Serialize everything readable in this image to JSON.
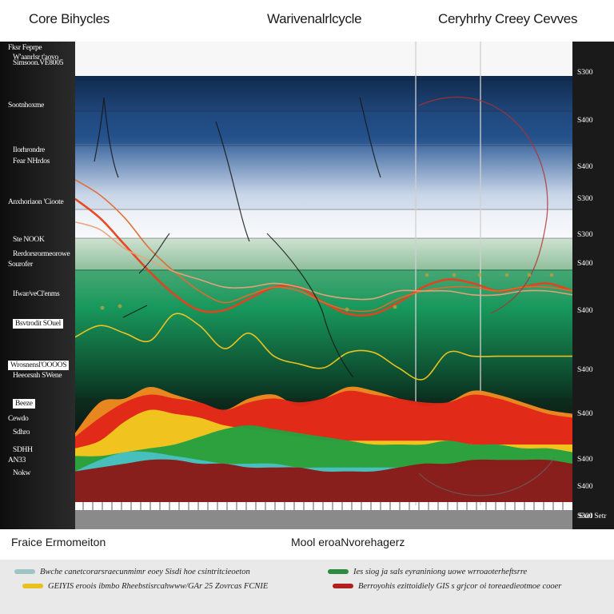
{
  "header": {
    "left_title": "Core Bihycles",
    "center_title": "Warivenalrlcycle",
    "right_title": "Ceryhrhy Creey Cevves"
  },
  "left_labels": [
    "Fksr  Feprpe",
    "W'aanrlsr t'aovo",
    "Simsoon.VE8005",
    "Sootnhoxme",
    "Ilorhrondre",
    "Fear    NHrdos",
    "Anxhoriaon 'Cioote",
    "Ste       NOOK",
    "Rerdorsrormeorowe",
    "Sourofer",
    "Ifwar/veCl'enms",
    "Bsvtrodit SOuel",
    "Wrosnensl'OOOOS",
    "Heeorsnh SWene",
    "Beeze",
    "Cewdo",
    "Sdhro",
    "SDHH",
    "AN33",
    "Nokw"
  ],
  "right_labels": [
    "S300",
    "S400",
    "S400",
    "S300",
    "S300",
    "S400",
    "S400",
    "S400",
    "S400",
    "S400",
    "S400",
    "S300",
    "Sxel Setr"
  ],
  "footer": {
    "left_label": "Fraice  Ermomeiton",
    "center_label": "Mool eroaNvorehagerz"
  },
  "legend": [
    {
      "text": "Bwche  canetcorarsraecunmimr eoey Sisdi hoe  csintritcieoeton",
      "color": "#9fc4c4"
    },
    {
      "text": "Ies  siog ja sals  eyraniniong uowe wrroaoterheftsrre",
      "color": "#2d8a3e"
    },
    {
      "text": "GEIYIS eroois  ibmbo Rheebstisrcahwww/GAr 25  Zovrcas FCNIE",
      "color": "#e8c020"
    },
    {
      "text": "Berroyohis  ezittoidiely   GIS s grjcor oi  toreaedieotmoe  cooer",
      "color": "#b02020"
    }
  ],
  "colors": {
    "band_navy": "#17335a",
    "band_blue": "#2d5b9a",
    "band_green": "#13985a",
    "band_dark_green": "#0c4a2a",
    "curve_red": "#e02818",
    "curve_orange": "#f08a20",
    "curve_yellow": "#f2c820",
    "curve_teal": "#48c0c0",
    "curve_green": "#27a040",
    "curve_maroon": "#8a1a18",
    "baseline_gray": "#9e9e9e"
  },
  "chart_data": {
    "type": "area",
    "title": "",
    "xlabel": "",
    "ylabel": "",
    "y_ticks": [
      "S300",
      "S400",
      "S400",
      "S300",
      "S300",
      "S400",
      "S400",
      "S400",
      "S400",
      "S400",
      "S400",
      "S300"
    ],
    "ylim": [
      0,
      12
    ],
    "x": [
      0,
      1,
      2,
      3,
      4,
      5,
      6,
      7,
      8,
      9,
      10,
      11,
      12,
      13,
      14,
      15,
      16,
      17,
      18,
      19,
      20
    ],
    "series": [
      {
        "name": "",
        "kind": "line",
        "color": "#e8401c",
        "values": [
          7.9,
          7.4,
          6.7,
          6.0,
          5.4,
          5.0,
          5.0,
          5.3,
          5.6,
          5.6,
          5.2,
          4.9,
          4.9,
          5.2,
          5.6,
          5.8,
          5.7,
          5.5,
          5.6,
          5.7,
          5.5
        ]
      },
      {
        "name": "",
        "kind": "line",
        "color": "#e06a30",
        "values": [
          8.4,
          8.0,
          7.4,
          6.6,
          6.0,
          5.5,
          5.2,
          5.4,
          5.6,
          5.5,
          5.2,
          5.0,
          5.0,
          5.3,
          5.5,
          5.6,
          5.6,
          5.5,
          5.6,
          5.6,
          5.5
        ]
      },
      {
        "name": "",
        "kind": "line",
        "color": "#e9a27a",
        "values": [
          7.3,
          7.1,
          6.6,
          6.3,
          6.0,
          5.8,
          5.6,
          5.6,
          5.7,
          5.6,
          5.4,
          5.3,
          5.3,
          5.5,
          5.5,
          5.5,
          5.4,
          5.4,
          5.5,
          5.5,
          5.4
        ]
      },
      {
        "name": "",
        "kind": "line",
        "color": "#f2c820",
        "values": [
          4.3,
          4.6,
          4.4,
          4.2,
          4.9,
          4.6,
          4.0,
          4.4,
          3.8,
          3.6,
          3.5,
          3.9,
          3.9,
          3.5,
          3.2,
          3.9,
          3.8,
          3.8,
          3.8,
          3.8,
          3.8
        ]
      },
      {
        "name": "",
        "kind": "area",
        "color": "#f08a20",
        "values": [
          1.8,
          2.6,
          2.7,
          3.0,
          2.8,
          2.6,
          2.4,
          2.7,
          2.8,
          2.5,
          2.7,
          3.0,
          2.9,
          2.7,
          2.5,
          2.6,
          2.9,
          2.8,
          2.6,
          2.4,
          2.3
        ]
      },
      {
        "name": "",
        "kind": "area",
        "color": "#e02818",
        "values": [
          1.7,
          2.2,
          2.6,
          2.8,
          2.7,
          2.6,
          2.4,
          2.6,
          2.7,
          2.6,
          2.7,
          2.9,
          2.8,
          2.7,
          2.6,
          2.6,
          2.8,
          2.7,
          2.5,
          2.3,
          2.2
        ]
      },
      {
        "name": "",
        "kind": "area",
        "color": "#f2c820",
        "values": [
          1.4,
          1.6,
          2.1,
          2.4,
          2.3,
          2.2,
          2.0,
          1.9,
          1.8,
          1.7,
          1.6,
          1.6,
          1.6,
          1.6,
          1.6,
          1.6,
          1.5,
          1.5,
          1.5,
          1.5,
          1.5
        ]
      },
      {
        "name": "",
        "kind": "area",
        "color": "#27a040",
        "values": [
          1.2,
          1.2,
          1.3,
          1.4,
          1.5,
          1.7,
          1.9,
          2.0,
          1.9,
          1.8,
          1.7,
          1.6,
          1.5,
          1.5,
          1.5,
          1.6,
          1.5,
          1.5,
          1.4,
          1.4,
          1.3
        ]
      },
      {
        "name": "",
        "kind": "area",
        "color": "#48c0c0",
        "values": [
          0.8,
          1.1,
          1.3,
          1.3,
          1.2,
          1.1,
          1.0,
          1.0,
          1.0,
          0.9,
          0.9,
          0.9,
          0.9,
          0.9,
          0.9,
          0.9,
          0.9,
          0.9,
          0.9,
          0.9,
          0.9
        ]
      },
      {
        "name": "",
        "kind": "area",
        "color": "#8a1a18",
        "values": [
          0.8,
          0.9,
          1.0,
          1.1,
          1.1,
          1.0,
          1.0,
          0.9,
          0.9,
          0.9,
          0.8,
          0.8,
          0.8,
          0.9,
          1.0,
          1.0,
          1.1,
          1.1,
          1.1,
          1.1,
          1.0
        ]
      }
    ]
  }
}
